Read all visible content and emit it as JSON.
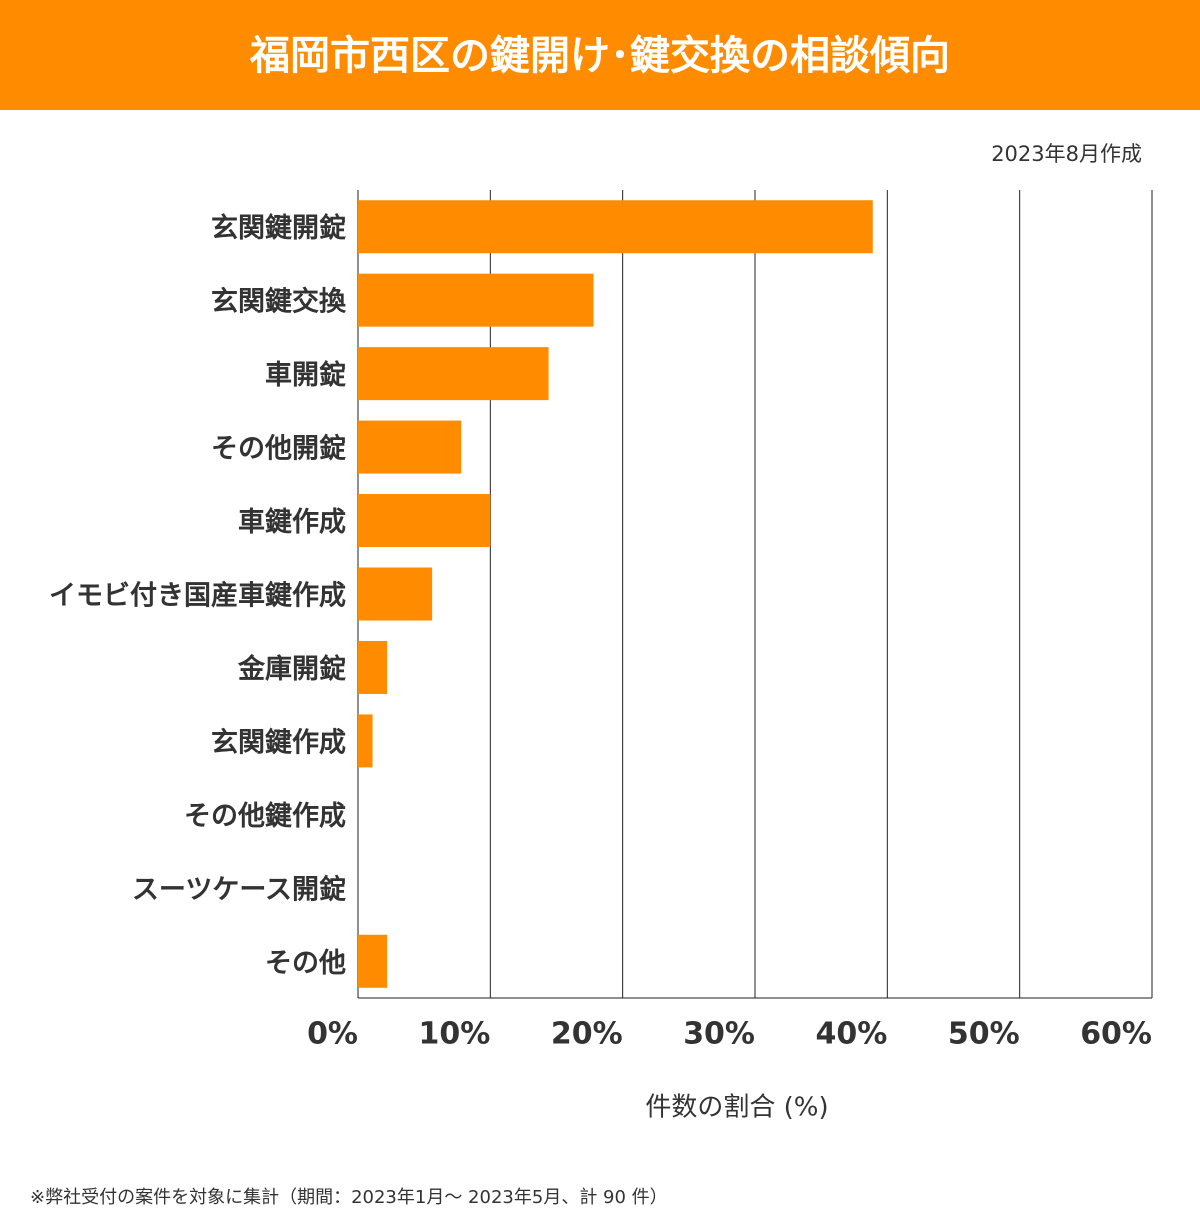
{
  "chart_data": {
    "type": "bar",
    "orientation": "horizontal",
    "title": "福岡市西区の鍵開け･鍵交換の相談傾向",
    "subtitle": "2023年8月作成",
    "categories": [
      "玄関鍵開錠",
      "玄関鍵交換",
      "車開錠",
      "その他開錠",
      "車鍵作成",
      "イモビ付き国産車鍵作成",
      "金庫開錠",
      "玄関鍵作成",
      "その他鍵作成",
      "スーツケース開錠",
      "その他"
    ],
    "values": [
      38.9,
      17.8,
      14.4,
      7.8,
      10.0,
      5.6,
      2.2,
      1.1,
      0,
      0,
      2.2
    ],
    "color": "#ff8c00",
    "xlim": [
      0,
      60
    ],
    "xticks": [
      {
        "value": 0,
        "label": "0%"
      },
      {
        "value": 10,
        "label": "10%"
      },
      {
        "value": 20,
        "label": "20%"
      },
      {
        "value": 30,
        "label": "30%"
      },
      {
        "value": 40,
        "label": "40%"
      },
      {
        "value": 50,
        "label": "50%"
      },
      {
        "value": 60,
        "label": "60%"
      }
    ],
    "x_label": "件数の割合 (%)",
    "grid": true,
    "note": "※弊社受付の案件を対象に集計（期間：2023年1月～ 2023年5月、計 90 件）"
  }
}
